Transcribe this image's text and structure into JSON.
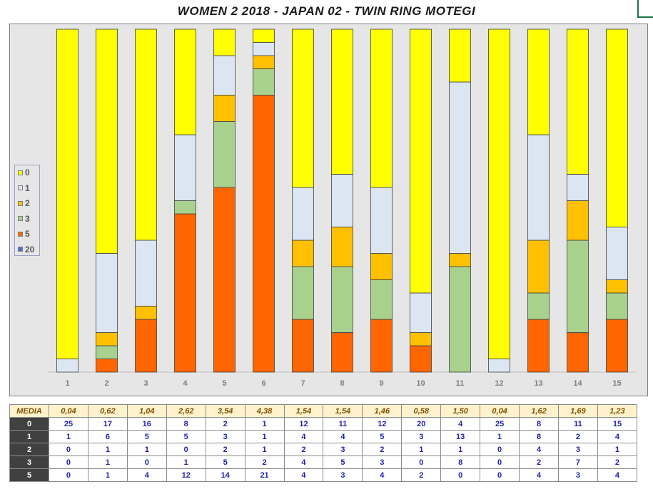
{
  "title": "WOMEN 2 2018 - JAPAN 02 - TWIN RING MOTEGI",
  "chart_data": {
    "type": "bar",
    "stacked": true,
    "normalized": true,
    "categories": [
      "1",
      "2",
      "3",
      "4",
      "5",
      "6",
      "7",
      "8",
      "9",
      "10",
      "11",
      "12",
      "13",
      "14",
      "15"
    ],
    "series": [
      {
        "name": "5",
        "color": "#ff6600",
        "values": [
          0,
          1,
          4,
          12,
          14,
          21,
          4,
          3,
          4,
          2,
          0,
          0,
          4,
          3,
          4
        ]
      },
      {
        "name": "3",
        "color": "#a9d18e",
        "values": [
          0,
          1,
          0,
          1,
          5,
          2,
          4,
          5,
          3,
          0,
          8,
          0,
          2,
          7,
          2
        ]
      },
      {
        "name": "2",
        "color": "#ffc000",
        "values": [
          0,
          1,
          1,
          0,
          2,
          1,
          2,
          3,
          2,
          1,
          1,
          0,
          4,
          3,
          1
        ]
      },
      {
        "name": "1",
        "color": "#dce6f2",
        "values": [
          1,
          6,
          5,
          5,
          3,
          1,
          4,
          4,
          5,
          3,
          13,
          1,
          8,
          2,
          4
        ]
      },
      {
        "name": "0",
        "color": "#ffff00",
        "values": [
          25,
          17,
          16,
          8,
          2,
          1,
          12,
          11,
          12,
          20,
          4,
          25,
          8,
          11,
          15
        ]
      },
      {
        "name": "20",
        "color": "#4472c4",
        "values": [
          0,
          0,
          0,
          0,
          0,
          0,
          0,
          0,
          0,
          0,
          0,
          0,
          0,
          0,
          0
        ]
      }
    ],
    "legend": [
      "0",
      "1",
      "2",
      "3",
      "5",
      "20"
    ],
    "legend_position": "left",
    "grid": false
  },
  "table": {
    "media_label": "MEDIA",
    "media": [
      "0,04",
      "0,62",
      "1,04",
      "2,62",
      "3,54",
      "4,38",
      "1,54",
      "1,54",
      "1,46",
      "0,58",
      "1,50",
      "0,04",
      "1,62",
      "1,69",
      "1,23"
    ],
    "rows": [
      {
        "label": "0",
        "values": [
          "25",
          "17",
          "16",
          "8",
          "2",
          "1",
          "12",
          "11",
          "12",
          "20",
          "4",
          "25",
          "8",
          "11",
          "15"
        ]
      },
      {
        "label": "1",
        "values": [
          "1",
          "6",
          "5",
          "5",
          "3",
          "1",
          "4",
          "4",
          "5",
          "3",
          "13",
          "1",
          "8",
          "2",
          "4"
        ]
      },
      {
        "label": "2",
        "values": [
          "0",
          "1",
          "1",
          "0",
          "2",
          "1",
          "2",
          "3",
          "2",
          "1",
          "1",
          "0",
          "4",
          "3",
          "1"
        ]
      },
      {
        "label": "3",
        "values": [
          "0",
          "1",
          "0",
          "1",
          "5",
          "2",
          "4",
          "5",
          "3",
          "0",
          "8",
          "0",
          "2",
          "7",
          "2"
        ]
      },
      {
        "label": "5",
        "values": [
          "0",
          "1",
          "4",
          "12",
          "14",
          "21",
          "4",
          "3",
          "4",
          "2",
          "0",
          "0",
          "4",
          "3",
          "4"
        ]
      }
    ]
  }
}
